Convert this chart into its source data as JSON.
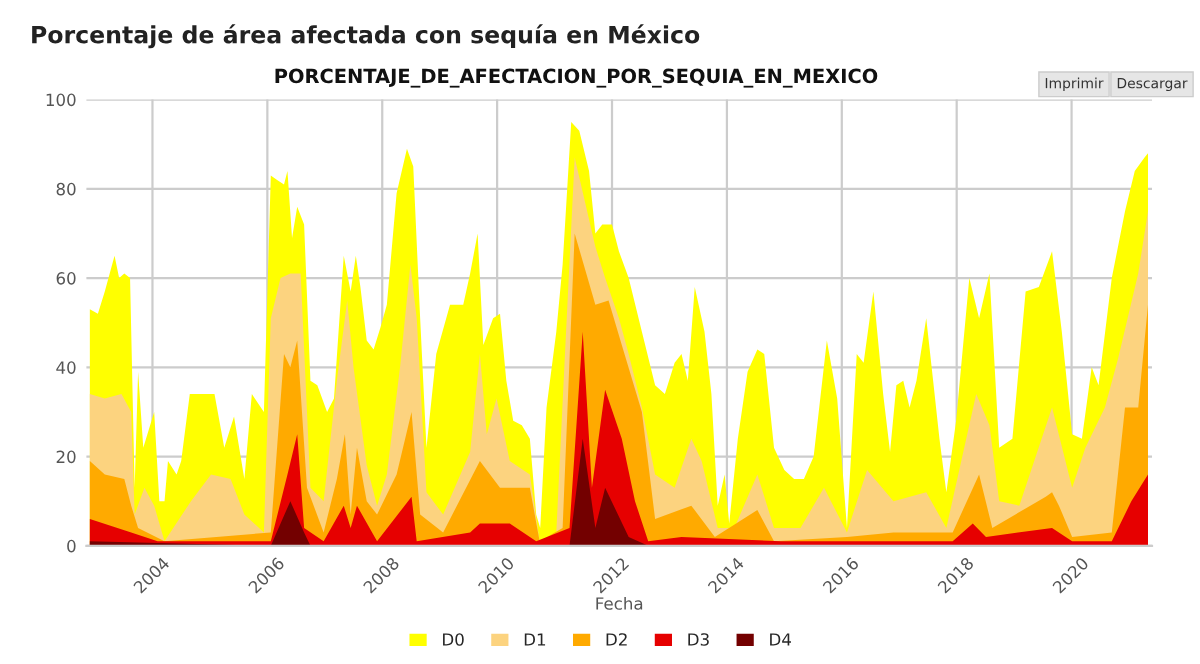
{
  "chart_data": {
    "type": "area",
    "title": "Porcentaje de área afectada con sequía en México",
    "subtitle": "PORCENTAJE_DE_AFECTACION_POR_SEQUIA_EN_MEXICO",
    "xlabel": "Fecha",
    "annotations": [
      "Imprimir",
      "Descargar"
    ],
    "xlim": [
      2002.85,
      2021.4
    ],
    "xticks": [
      2004,
      2006,
      2008,
      2010,
      2012,
      2014,
      2016,
      2018,
      2020
    ],
    "ylim": [
      0,
      100
    ],
    "yticks": [
      0,
      20,
      40,
      60,
      80,
      100
    ],
    "grid": true,
    "legend": "bottom",
    "series": [
      {
        "name": "D0",
        "color": "#ffff00",
        "x": [
          2002.91,
          2003.05,
          2003.17,
          2003.34,
          2003.42,
          2003.51,
          2003.61,
          2003.69,
          2003.75,
          2003.84,
          2004.03,
          2004.12,
          2004.21,
          2004.27,
          2004.42,
          2004.5,
          2004.65,
          2004.9,
          2005.08,
          2005.25,
          2005.42,
          2005.6,
          2005.73,
          2005.94,
          2006.06,
          2006.17,
          2006.29,
          2006.35,
          2006.43,
          2006.52,
          2006.64,
          2006.75,
          2006.87,
          2007.04,
          2007.16,
          2007.33,
          2007.45,
          2007.54,
          2007.62,
          2007.73,
          2007.85,
          2007.97,
          2008.08,
          2008.25,
          2008.43,
          2008.54,
          2008.66,
          2008.77,
          2008.94,
          2009.18,
          2009.41,
          2009.53,
          2009.66,
          2009.76,
          2009.93,
          2010.05,
          2010.16,
          2010.28,
          2010.43,
          2010.57,
          2010.68,
          2010.75,
          2010.86,
          2011.03,
          2011.14,
          2011.29,
          2011.43,
          2011.6,
          2011.71,
          2011.83,
          2012.0,
          2012.12,
          2012.29,
          2012.52,
          2012.75,
          2012.92,
          2013.09,
          2013.21,
          2013.32,
          2013.44,
          2013.61,
          2013.73,
          2013.84,
          2013.96,
          2014.04,
          2014.19,
          2014.36,
          2014.53,
          2014.65,
          2014.82,
          2015.0,
          2015.17,
          2015.34,
          2015.51,
          2015.74,
          2015.92,
          2016.09,
          2016.26,
          2016.38,
          2016.55,
          2016.72,
          2016.84,
          2016.95,
          2017.07,
          2017.18,
          2017.3,
          2017.47,
          2017.59,
          2017.7,
          2017.82,
          2017.99,
          2018.22,
          2018.39,
          2018.57,
          2018.74,
          2018.97,
          2019.2,
          2019.43,
          2019.66,
          2019.83,
          2020.01,
          2020.18,
          2020.35,
          2020.47,
          2020.7,
          2020.93,
          2021.1,
          2021.27,
          2021.33
        ],
        "values": [
          53,
          52,
          57,
          65,
          60,
          61,
          60,
          13,
          39,
          22,
          30,
          10,
          10,
          19,
          16,
          19,
          34,
          34,
          34,
          22,
          29,
          15,
          34,
          30,
          83,
          82,
          81,
          84,
          69,
          76,
          72,
          37,
          36,
          30,
          33,
          65,
          57,
          65,
          58,
          46,
          44,
          49,
          54,
          79,
          89,
          85,
          51,
          22,
          43,
          54,
          54,
          61,
          70,
          45,
          51,
          52,
          37,
          28,
          27,
          24,
          7,
          4,
          31,
          48,
          63,
          95,
          93,
          84,
          70,
          72,
          72,
          66,
          60,
          48,
          36,
          34,
          41,
          43,
          37,
          58,
          48,
          34,
          9,
          16,
          5,
          24,
          39,
          44,
          43,
          22,
          17,
          15,
          15,
          20,
          46,
          33,
          4,
          43,
          41,
          57,
          34,
          21,
          36,
          37,
          31,
          37,
          51,
          37,
          24,
          12,
          28,
          60,
          51,
          61,
          22,
          24,
          57,
          58,
          66,
          48,
          25,
          24,
          40,
          36,
          60,
          75,
          84,
          87,
          88
        ]
      },
      {
        "name": "D1",
        "color": "#fcd37f",
        "x": [
          2002.91,
          2003.17,
          2003.46,
          2003.63,
          2003.69,
          2003.86,
          2004.03,
          2004.21,
          2004.67,
          2005.02,
          2005.36,
          2005.6,
          2005.94,
          2006.06,
          2006.23,
          2006.4,
          2006.58,
          2006.75,
          2006.98,
          2007.21,
          2007.39,
          2007.5,
          2007.73,
          2007.91,
          2008.08,
          2008.31,
          2008.49,
          2008.6,
          2008.77,
          2009.06,
          2009.53,
          2009.7,
          2009.82,
          2009.99,
          2010.22,
          2010.57,
          2010.74,
          2011.03,
          2011.2,
          2011.35,
          2011.71,
          2011.88,
          2012.12,
          2012.29,
          2012.52,
          2012.75,
          2013.09,
          2013.38,
          2013.56,
          2013.84,
          2014.13,
          2014.53,
          2014.82,
          2015.28,
          2015.69,
          2016.09,
          2016.44,
          2016.9,
          2017.47,
          2017.82,
          2018.34,
          2018.57,
          2018.74,
          2019.09,
          2019.66,
          2020.01,
          2020.24,
          2020.58,
          2020.81,
          2021.16,
          2021.33
        ],
        "values": [
          34,
          33,
          34,
          30,
          7,
          13,
          9,
          1,
          10,
          16,
          15,
          7,
          3,
          51,
          60,
          61,
          61,
          13,
          10,
          37,
          55,
          40,
          18,
          9,
          16,
          40,
          63,
          51,
          12,
          7,
          21,
          43,
          25,
          33,
          19,
          16,
          1,
          3,
          48,
          87,
          67,
          60,
          51,
          43,
          31,
          16,
          13,
          24,
          19,
          4,
          4,
          16,
          4,
          4,
          13,
          3,
          17,
          10,
          12,
          4,
          34,
          27,
          10,
          9,
          31,
          13,
          22,
          31,
          42,
          61,
          75
        ]
      },
      {
        "name": "D2",
        "color": "#ffaa00",
        "x": [
          2002.91,
          2003.17,
          2003.51,
          2003.63,
          2003.75,
          2004.21,
          2006.06,
          2006.29,
          2006.4,
          2006.52,
          2006.69,
          2006.98,
          2007.21,
          2007.35,
          2007.45,
          2007.56,
          2007.73,
          2007.91,
          2008.25,
          2008.51,
          2008.66,
          2009.06,
          2009.7,
          2010.05,
          2010.57,
          2010.74,
          2011.14,
          2011.35,
          2011.71,
          2011.94,
          2012.17,
          2012.52,
          2012.75,
          2013.38,
          2013.79,
          2014.53,
          2014.82,
          2016.09,
          2016.9,
          2017.93,
          2018.39,
          2018.62,
          2019.55,
          2019.66,
          2019.78,
          2020.01,
          2020.7,
          2020.93,
          2021.16,
          2021.33
        ],
        "values": [
          19,
          16,
          15,
          9,
          4,
          1,
          3,
          43,
          40,
          46,
          13,
          3,
          15,
          25,
          7,
          22,
          10,
          7,
          16,
          30,
          7,
          3,
          19,
          13,
          13,
          1,
          4,
          70,
          54,
          55,
          45,
          30,
          6,
          9,
          2,
          8,
          1,
          2,
          3,
          3,
          16,
          4,
          11,
          12,
          9,
          2,
          3,
          31,
          31,
          54
        ]
      },
      {
        "name": "D3",
        "color": "#e60000",
        "x": [
          2002.91,
          2003.63,
          2004.09,
          2006.06,
          2006.35,
          2006.52,
          2006.64,
          2006.98,
          2007.33,
          2007.45,
          2007.56,
          2007.91,
          2008.51,
          2008.6,
          2009.53,
          2009.7,
          2010.22,
          2010.68,
          2011.26,
          2011.49,
          2011.65,
          2011.88,
          2012.17,
          2012.4,
          2012.63,
          2013.21,
          2014.94,
          2017.93,
          2018.28,
          2018.51,
          2019.66,
          2020.01,
          2020.7,
          2021.04,
          2021.33
        ],
        "values": [
          6,
          3,
          1,
          1,
          16,
          25,
          4,
          1,
          9,
          4,
          9,
          1,
          11,
          1,
          3,
          5,
          5,
          1,
          4,
          48,
          13,
          35,
          24,
          10,
          1,
          2,
          1,
          1,
          5,
          2,
          4,
          1,
          1,
          10,
          16
        ]
      },
      {
        "name": "D4",
        "color": "#730000",
        "x": [
          2002.91,
          2006.06,
          2006.4,
          2006.64,
          2006.75,
          2011.26,
          2011.49,
          2011.71,
          2011.88,
          2012.29,
          2012.63,
          2021.33
        ],
        "values": [
          1,
          0,
          10,
          3,
          0,
          0,
          24,
          4,
          13,
          2,
          0,
          0
        ]
      }
    ]
  }
}
